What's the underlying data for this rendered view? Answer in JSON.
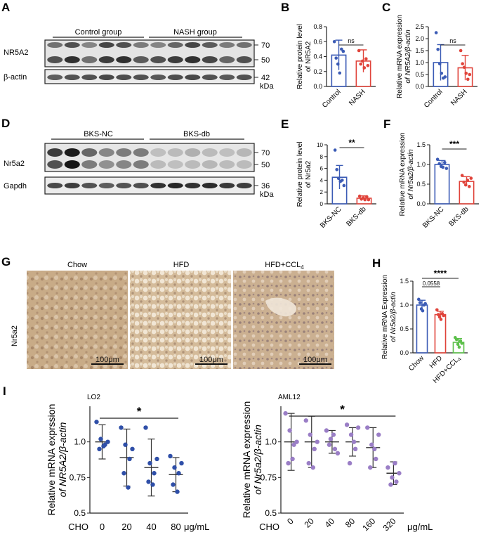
{
  "colors": {
    "blue": "#3b5bb5",
    "red": "#e0433a",
    "green": "#5cc04a",
    "purple": "#9a7ec6",
    "navy": "#2f4fa8"
  },
  "panels": {
    "A": {
      "letter": "A",
      "groups": [
        "Control group",
        "NASH group"
      ],
      "protein_label": "NR5A2",
      "control_label": "β-actin",
      "markers": [
        "70",
        "50",
        "42"
      ],
      "unit": "kDa"
    },
    "D": {
      "letter": "D",
      "groups": [
        "BKS-NC",
        "BKS-db"
      ],
      "protein_label": "Nr5a2",
      "control_label": "Gapdh",
      "markers": [
        "70",
        "50",
        "36"
      ],
      "unit": "kDa"
    },
    "G": {
      "letter": "G",
      "row_label": "Nr5a2",
      "images": [
        {
          "title": "Chow",
          "scale": "100μm",
          "tone": "#c8ab87"
        },
        {
          "title": "HFD",
          "scale": "100μm",
          "tone": "#d4bb9a"
        },
        {
          "title": "HFD+CCL",
          "title_sub": "4",
          "scale": "100μm",
          "tone": "#cbb091"
        }
      ]
    }
  },
  "chart_data": [
    {
      "id": "B",
      "letter": "B",
      "type": "bar",
      "categories": [
        "Control",
        "NASH"
      ],
      "values": [
        0.42,
        0.34
      ],
      "errors": [
        0.2,
        0.15
      ],
      "points": [
        [
          0.6,
          0.38,
          0.3,
          0.18,
          0.5,
          0.47
        ],
        [
          0.48,
          0.3,
          0.34,
          0.25,
          0.37,
          0.28
        ]
      ],
      "ylabel": [
        "Relative protein level",
        "of NR5A2"
      ],
      "ylim": [
        0,
        0.8
      ],
      "yticks": [
        "0.0",
        "0.2",
        "0.4",
        "0.6",
        "0.8"
      ],
      "significance": "ns",
      "colors": [
        "#3b5bb5",
        "#e0433a"
      ]
    },
    {
      "id": "C",
      "letter": "C",
      "type": "bar",
      "categories": [
        "Control",
        "NASH"
      ],
      "values": [
        1.0,
        0.78
      ],
      "errors": [
        0.75,
        0.52
      ],
      "points": [
        [
          2.25,
          1.55,
          0.95,
          0.55,
          0.35,
          0.4
        ],
        [
          1.5,
          0.95,
          0.8,
          0.55,
          0.3,
          0.5
        ]
      ],
      "ylabel": [
        "Relative mRNA expression",
        "of NR5A2/β-actin"
      ],
      "ylim": [
        0,
        2.5
      ],
      "yticks": [
        "0.0",
        "0.5",
        "1.0",
        "1.5",
        "2.0",
        "2.5"
      ],
      "significance": "ns",
      "colors": [
        "#3b5bb5",
        "#e0433a"
      ]
    },
    {
      "id": "E",
      "letter": "E",
      "type": "bar",
      "categories": [
        "BKS-NC",
        "BKS-db"
      ],
      "values": [
        4.5,
        0.95
      ],
      "errors": [
        2.0,
        0.4
      ],
      "points": [
        [
          9.1,
          5.8,
          4.3,
          3.8,
          4.0,
          3.1
        ],
        [
          1.3,
          0.8,
          1.0,
          0.7,
          1.2,
          0.7
        ]
      ],
      "ylabel": [
        "Relative protein level",
        "of Nr5a2"
      ],
      "ylim": [
        0,
        10
      ],
      "yticks": [
        "0",
        "2",
        "4",
        "6",
        "8",
        "10"
      ],
      "significance": "**",
      "colors": [
        "#3b5bb5",
        "#e0433a"
      ]
    },
    {
      "id": "F",
      "letter": "F",
      "type": "bar",
      "categories": [
        "BKS-NC",
        "BKS-db"
      ],
      "values": [
        1.0,
        0.57
      ],
      "errors": [
        0.1,
        0.12
      ],
      "points": [
        [
          1.13,
          1.02,
          0.95,
          0.93,
          1.05,
          0.9
        ],
        [
          0.72,
          0.55,
          0.48,
          0.6,
          0.44,
          0.65
        ]
      ],
      "ylabel": [
        "Relative mRNA expression",
        "of Nr5a2/β-actin"
      ],
      "ylim": [
        0,
        1.5
      ],
      "yticks": [
        "0.0",
        "0.5",
        "1.0",
        "1.5"
      ],
      "significance": "***",
      "colors": [
        "#3b5bb5",
        "#e0433a"
      ]
    },
    {
      "id": "H",
      "letter": "H",
      "type": "bar",
      "categories": [
        "Chow",
        "HFD",
        "HFD+CCL"
      ],
      "category_sub": [
        "",
        "",
        "4"
      ],
      "values": [
        1.0,
        0.8,
        0.22
      ],
      "errors": [
        0.1,
        0.07,
        0.08
      ],
      "points": [
        [
          1.12,
          1.05,
          0.92,
          0.88,
          1.0,
          1.03
        ],
        [
          0.9,
          0.8,
          0.75,
          0.7,
          0.82,
          0.78
        ],
        [
          0.32,
          0.28,
          0.18,
          0.12,
          0.25,
          0.2
        ]
      ],
      "ylabel": [
        "Relative mRNA Expression",
        "of Nr5a2/β-actin"
      ],
      "ylim": [
        0,
        1.5
      ],
      "yticks": [
        "0.0",
        "0.5",
        "1.0",
        "1.5"
      ],
      "significance_main": "****",
      "significance_pair": "0.0558",
      "colors": [
        "#3b5bb5",
        "#e0433a",
        "#5cc04a"
      ]
    },
    {
      "id": "I1",
      "letter": "I",
      "type": "scatter",
      "subtitle": "LO2",
      "x": [
        "0",
        "20",
        "40",
        "80"
      ],
      "xprefix": "CHO",
      "xunit": "μg/mL",
      "means": [
        1.0,
        0.89,
        0.82,
        0.77
      ],
      "sd": [
        0.12,
        0.2,
        0.2,
        0.12
      ],
      "points": [
        [
          1.14,
          1.02,
          0.98,
          0.95,
          0.97,
          1.0
        ],
        [
          1.1,
          0.98,
          0.88,
          0.78,
          0.68,
          0.95
        ],
        [
          1.1,
          0.85,
          0.78,
          0.72,
          0.7,
          0.88
        ],
        [
          0.9,
          0.82,
          0.78,
          0.7,
          0.65,
          0.85
        ]
      ],
      "ylabel": [
        "Relative mRNA exprssion",
        "of NR5A2/β-actin"
      ],
      "ylim": [
        0.5,
        1.25
      ],
      "yticks": [
        "0.5",
        "0.75",
        "1.0"
      ],
      "yticks_shown": [
        "0.5",
        "0.5",
        "0.75",
        "1.0"
      ],
      "significance": "*",
      "color": "#2f4fa8"
    },
    {
      "id": "I2",
      "type": "scatter",
      "subtitle": "AML12",
      "x": [
        "0",
        "20",
        "40",
        "80",
        "160",
        "320"
      ],
      "xprefix": "CHO",
      "xunit": "μg/mL",
      "means": [
        1.0,
        1.0,
        1.0,
        1.0,
        0.96,
        0.78
      ],
      "sd": [
        0.2,
        0.18,
        0.08,
        0.1,
        0.14,
        0.08
      ],
      "points": [
        [
          1.2,
          1.08,
          0.98,
          0.85,
          0.88,
          1.0
        ],
        [
          1.15,
          1.05,
          0.95,
          0.85,
          0.82,
          1.0
        ],
        [
          1.08,
          1.02,
          0.95,
          0.98,
          1.05,
          0.92
        ],
        [
          1.12,
          1.05,
          0.95,
          0.85,
          1.0,
          1.1
        ],
        [
          1.1,
          0.98,
          0.88,
          0.82,
          0.95,
          1.05
        ],
        [
          0.82,
          0.75,
          0.72,
          0.7,
          0.85,
          0.78
        ]
      ],
      "ylabel": [
        "Relative mRNA expression",
        "of Nr5a2/β-actin"
      ],
      "ylim": [
        0.5,
        1.25
      ],
      "yticks": [
        "0.5",
        "0.75",
        "1.0"
      ],
      "significance": "*",
      "color": "#9a7ec6"
    }
  ]
}
